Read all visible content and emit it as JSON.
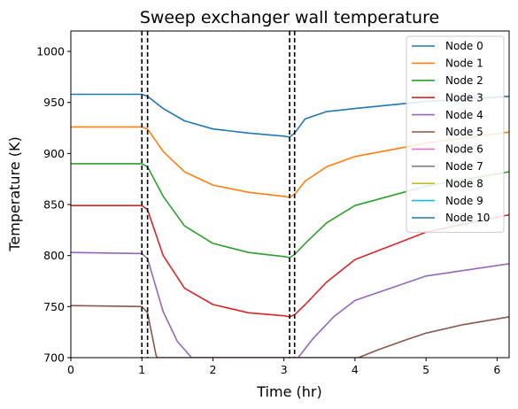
{
  "chart_data": {
    "type": "line",
    "title": "Sweep exchanger wall temperature",
    "xlabel": "Time (hr)",
    "ylabel": "Temperature (K)",
    "xlim": [
      0,
      6.17
    ],
    "ylim": [
      700,
      1020
    ],
    "xticks": [
      "0",
      "1",
      "2",
      "3",
      "4",
      "5",
      "6"
    ],
    "yticks": [
      "700",
      "750",
      "800",
      "850",
      "900",
      "950",
      "1000"
    ],
    "grid": false,
    "legend_position": "top-right",
    "vlines": [
      1.0,
      1.08,
      3.08,
      3.15
    ],
    "series": [
      {
        "name": "Node 0",
        "color": "#1f77b4",
        "points": [
          [
            0,
            958
          ],
          [
            1.0,
            958
          ],
          [
            1.08,
            956
          ],
          [
            1.3,
            944
          ],
          [
            1.6,
            932
          ],
          [
            2.0,
            924
          ],
          [
            2.5,
            920
          ],
          [
            3.0,
            917
          ],
          [
            3.08,
            916
          ],
          [
            3.15,
            920
          ],
          [
            3.3,
            934
          ],
          [
            3.6,
            941
          ],
          [
            4.0,
            944
          ],
          [
            5.0,
            951
          ],
          [
            6.17,
            956
          ]
        ]
      },
      {
        "name": "Node 1",
        "color": "#ff7f0e",
        "points": [
          [
            0,
            926
          ],
          [
            1.0,
            926
          ],
          [
            1.08,
            924
          ],
          [
            1.3,
            902
          ],
          [
            1.6,
            882
          ],
          [
            2.0,
            869
          ],
          [
            2.5,
            862
          ],
          [
            3.0,
            858
          ],
          [
            3.08,
            857
          ],
          [
            3.15,
            860
          ],
          [
            3.3,
            873
          ],
          [
            3.6,
            887
          ],
          [
            4.0,
            897
          ],
          [
            5.0,
            910
          ],
          [
            6.17,
            921
          ]
        ]
      },
      {
        "name": "Node 2",
        "color": "#2ca02c",
        "points": [
          [
            0,
            890
          ],
          [
            1.0,
            890
          ],
          [
            1.08,
            887
          ],
          [
            1.3,
            858
          ],
          [
            1.6,
            829
          ],
          [
            2.0,
            812
          ],
          [
            2.5,
            803
          ],
          [
            3.0,
            799
          ],
          [
            3.08,
            798
          ],
          [
            3.15,
            801
          ],
          [
            3.3,
            812
          ],
          [
            3.6,
            832
          ],
          [
            4.0,
            849
          ],
          [
            5.0,
            868
          ],
          [
            6.17,
            882
          ]
        ]
      },
      {
        "name": "Node 3",
        "color": "#d62728",
        "points": [
          [
            0,
            849
          ],
          [
            1.0,
            849
          ],
          [
            1.08,
            845
          ],
          [
            1.3,
            800
          ],
          [
            1.6,
            768
          ],
          [
            2.0,
            752
          ],
          [
            2.5,
            744
          ],
          [
            3.0,
            741
          ],
          [
            3.08,
            740
          ],
          [
            3.15,
            742
          ],
          [
            3.3,
            752
          ],
          [
            3.6,
            774
          ],
          [
            4.0,
            796
          ],
          [
            5.0,
            823
          ],
          [
            6.17,
            840
          ]
        ]
      },
      {
        "name": "Node 4",
        "color": "#9467bd",
        "points": [
          [
            0,
            803
          ],
          [
            1.0,
            802
          ],
          [
            1.08,
            797
          ],
          [
            1.3,
            745
          ],
          [
            1.5,
            716
          ],
          [
            1.7,
            700
          ],
          [
            3.2,
            700
          ],
          [
            3.4,
            718
          ],
          [
            3.7,
            740
          ],
          [
            4.0,
            756
          ],
          [
            5.0,
            780
          ],
          [
            6.17,
            792
          ]
        ]
      },
      {
        "name": "Node 5",
        "color": "#8c564b",
        "points": [
          [
            0,
            751
          ],
          [
            1.0,
            750
          ],
          [
            1.08,
            744
          ],
          [
            1.2,
            702
          ],
          [
            1.22,
            700
          ],
          [
            4.05,
            700
          ],
          [
            4.3,
            707
          ],
          [
            4.7,
            717
          ],
          [
            5.0,
            724
          ],
          [
            5.5,
            732
          ],
          [
            6.17,
            740
          ]
        ]
      },
      {
        "name": "Node 6",
        "color": "#e377c2",
        "points": []
      },
      {
        "name": "Node 7",
        "color": "#7f7f7f",
        "points": []
      },
      {
        "name": "Node 8",
        "color": "#bcbd22",
        "points": []
      },
      {
        "name": "Node 9",
        "color": "#17becf",
        "points": []
      },
      {
        "name": "Node 10",
        "color": "#1f77b4",
        "points": []
      }
    ]
  }
}
